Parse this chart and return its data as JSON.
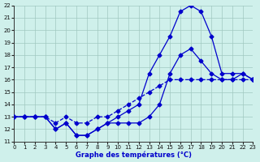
{
  "title": "Graphe des températures (°C)",
  "bg_color": "#cff0eb",
  "line_color": "#0000cc",
  "grid_color": "#a0c8c0",
  "xmin": 0,
  "xmax": 23,
  "ymin": 11,
  "ymax": 22,
  "series1_x": [
    0,
    1,
    2,
    3,
    4,
    5,
    6,
    7,
    8,
    9,
    10,
    11,
    12,
    13,
    14,
    15,
    16,
    17,
    18,
    19,
    20,
    21,
    22,
    23
  ],
  "series1_y": [
    13,
    13,
    13,
    13,
    12,
    12.5,
    11.5,
    11.5,
    12,
    12.5,
    12.5,
    12.5,
    12.5,
    13,
    14,
    16.5,
    18,
    18.5,
    17.5,
    16.5,
    16,
    16,
    16.5,
    16
  ],
  "series2_x": [
    0,
    1,
    2,
    3,
    4,
    5,
    6,
    7,
    8,
    9,
    10,
    11,
    12,
    13,
    14,
    15,
    16,
    17,
    18,
    19,
    20,
    21,
    22,
    23
  ],
  "series2_y": [
    13,
    13,
    13,
    13,
    12,
    12.5,
    11.5,
    11.5,
    12,
    12.5,
    13,
    13.5,
    14,
    16.5,
    18,
    19.5,
    21.5,
    22,
    21.5,
    19.5,
    16.5,
    16.5,
    16.5,
    16
  ],
  "series3_x": [
    0,
    1,
    2,
    3,
    4,
    5,
    6,
    7,
    8,
    9,
    10,
    11,
    12,
    13,
    14,
    15,
    16,
    17,
    18,
    19,
    20,
    21,
    22,
    23
  ],
  "series3_y": [
    13,
    13,
    13,
    13,
    12.5,
    13,
    12.5,
    12.5,
    13,
    13,
    13.5,
    14,
    14.5,
    15,
    15.5,
    16,
    16,
    16,
    16,
    16,
    16,
    16,
    16,
    16
  ],
  "yticks": [
    11,
    12,
    13,
    14,
    15,
    16,
    17,
    18,
    19,
    20,
    21,
    22
  ],
  "xticks": [
    0,
    1,
    2,
    3,
    4,
    5,
    6,
    7,
    8,
    9,
    10,
    11,
    12,
    13,
    14,
    15,
    16,
    17,
    18,
    19,
    20,
    21,
    22,
    23
  ]
}
